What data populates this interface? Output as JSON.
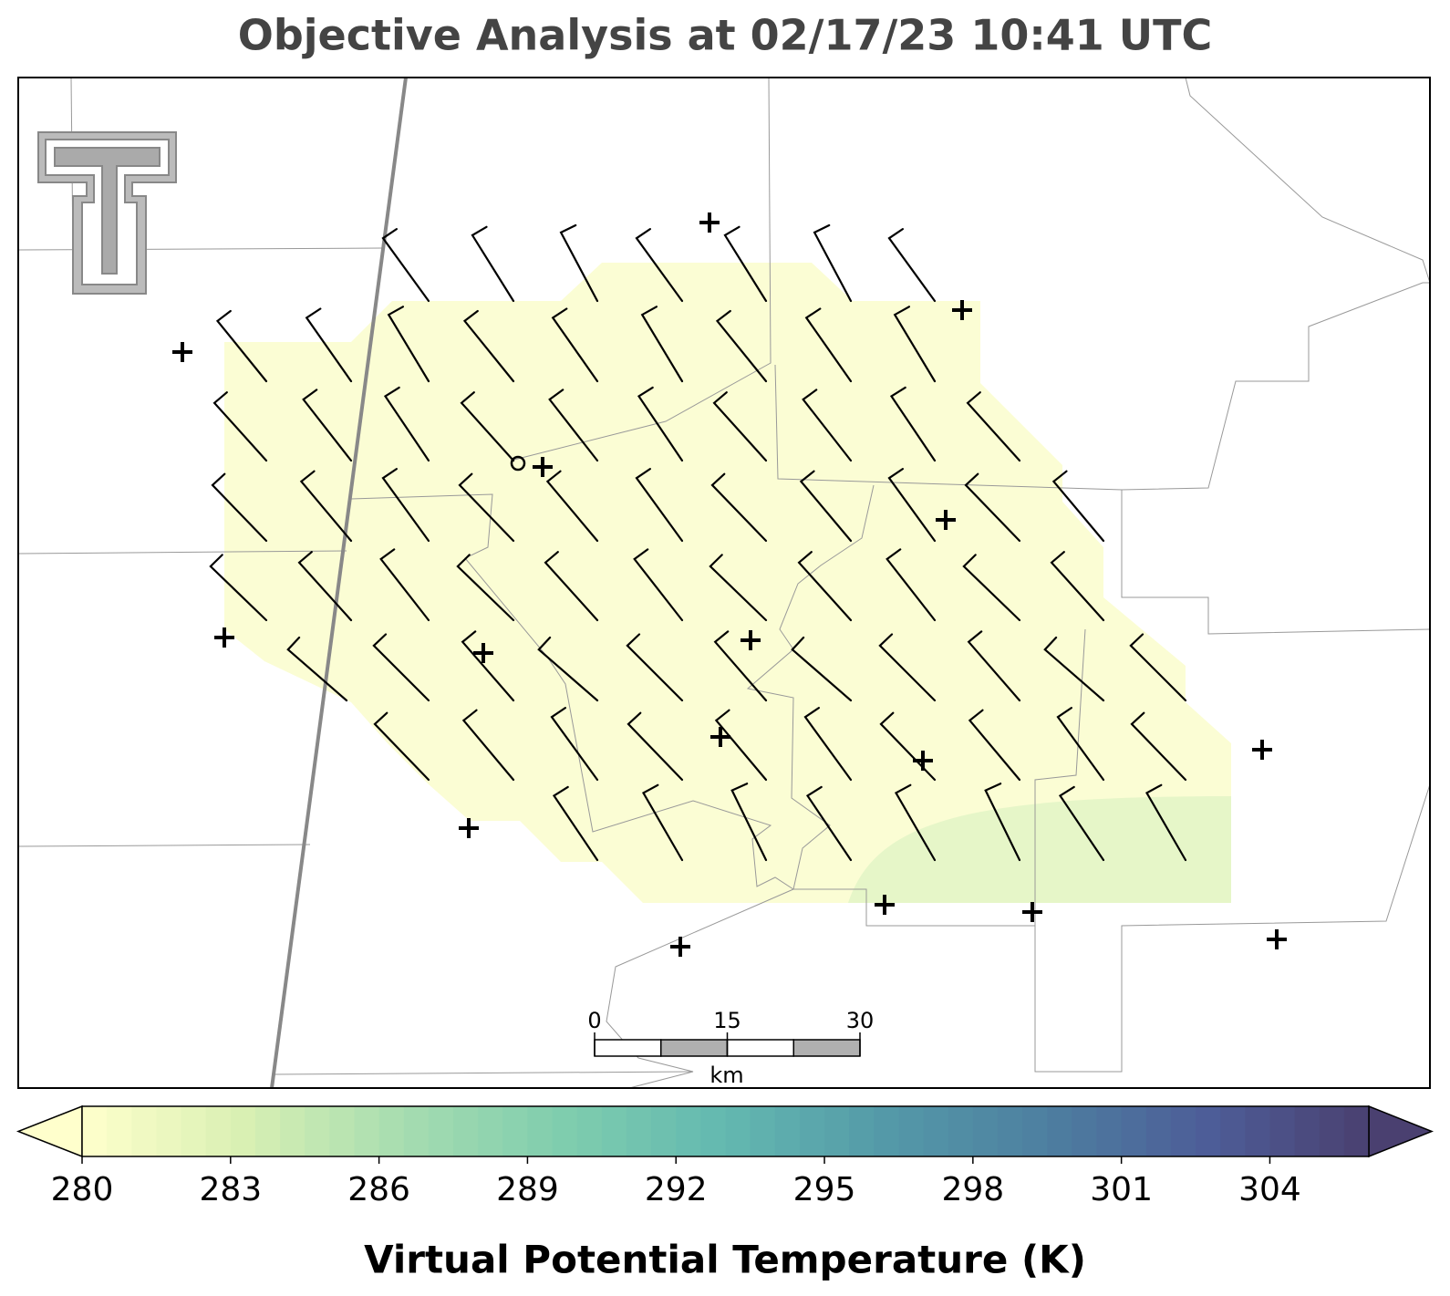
{
  "chart_data": {
    "type": "map",
    "title": "Objective Analysis at 02/17/23 10:41 UTC",
    "colorbar": {
      "label": "Virtual Potential Temperature (K)",
      "lim": [
        280,
        306
      ],
      "ticks": [
        280,
        283,
        286,
        289,
        292,
        295,
        298,
        301,
        304
      ],
      "colors": [
        "#ffffcc",
        "#d9f0b3",
        "#a6dcb0",
        "#7fcdae",
        "#63b8b0",
        "#5499a8",
        "#4d7fa0",
        "#4d5d98",
        "#4a4070"
      ]
    },
    "scale_bar": {
      "ticks": [
        0,
        15,
        30
      ],
      "unit": "km"
    }
  }
}
